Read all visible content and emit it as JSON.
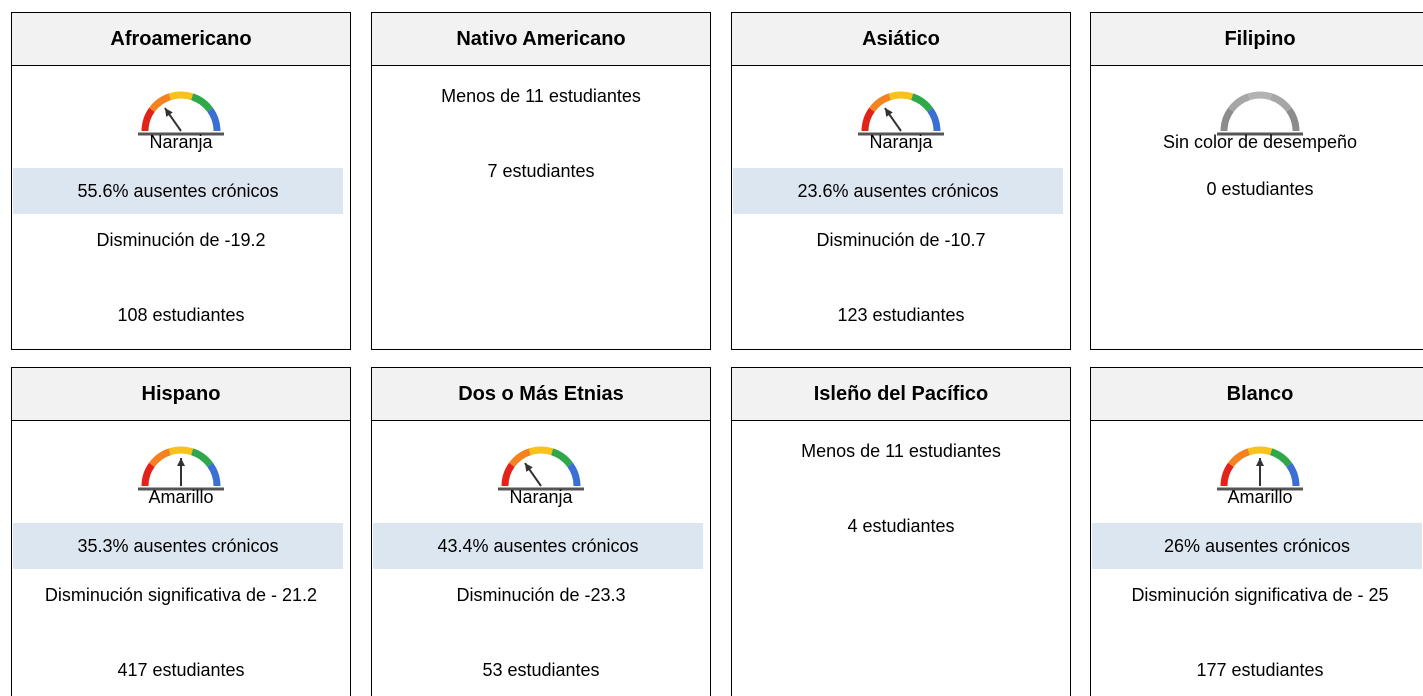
{
  "cards": [
    {
      "title": "Afroamericano",
      "status": "Naranja",
      "rate": "55.6% ausentes crónicos",
      "change": "Disminución de -19.2",
      "students": "108 estudiantes"
    },
    {
      "title": "Nativo Americano",
      "note": "Menos de 11 estudiantes",
      "students": "7 estudiantes"
    },
    {
      "title": "Asiático",
      "status": "Naranja",
      "rate": "23.6% ausentes crónicos",
      "change": "Disminución de -10.7",
      "students": "123 estudiantes"
    },
    {
      "title": "Filipino",
      "status": "Sin color de desempeño",
      "students": "0 estudiantes"
    },
    {
      "title": "Hispano",
      "status": "Amarillo",
      "rate": "35.3% ausentes crónicos",
      "change": "Disminución significativa de - 21.2",
      "students": "417 estudiantes"
    },
    {
      "title": "Dos o Más Etnias",
      "status": "Naranja",
      "rate": "43.4% ausentes crónicos",
      "change": "Disminución de -23.3",
      "students": "53 estudiantes"
    },
    {
      "title": "Isleño del Pacífico",
      "note": "Menos de 11 estudiantes",
      "students": "4 estudiantes"
    },
    {
      "title": "Blanco",
      "status": "Amarillo",
      "rate": "26% ausentes crónicos",
      "change": "Disminución significativa de - 25",
      "students": "177 estudiantes"
    }
  ]
}
